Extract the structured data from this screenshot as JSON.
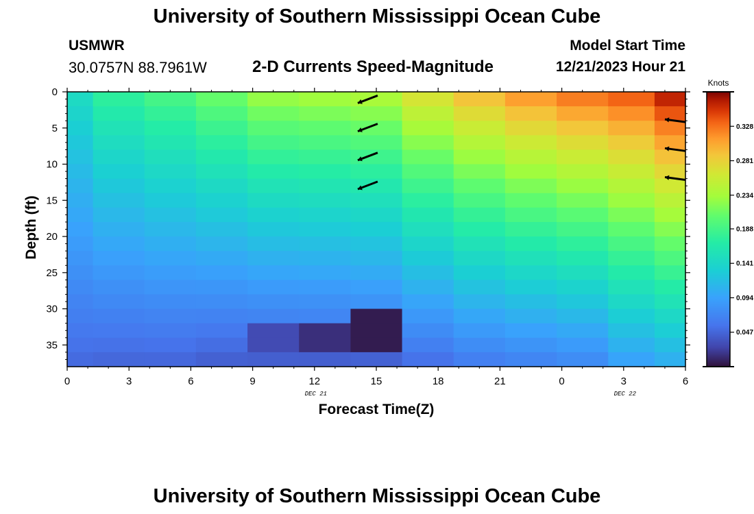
{
  "header": {
    "title": "University of Southern Mississippi Ocean Cube",
    "station": "USMWR",
    "coords": "30.0757N  88.7961W",
    "subtitle": "2-D Currents Speed-Magnitude",
    "model_start_label": "Model Start Time",
    "model_start_value": "12/21/2023 Hour 21"
  },
  "footer": {
    "title": "University of Southern Mississippi Ocean Cube"
  },
  "colorbar": {
    "label": "Knots",
    "ticks": [
      "0.328",
      "0.281",
      "0.234",
      "0.188",
      "0.141",
      "0.094",
      "0.047"
    ],
    "range": [
      0.0,
      0.375
    ]
  },
  "chart_data": {
    "type": "heatmap",
    "xlabel": "Forecast Time(Z)",
    "ylabel": "Depth (ft)",
    "x_tick_labels": [
      "0",
      "3",
      "6",
      "9",
      "12",
      "15",
      "18",
      "21",
      "0",
      "3",
      "6"
    ],
    "x_date_labels": [
      {
        "text": "DEC 21",
        "at_tick": 4
      },
      {
        "text": "DEC 22",
        "at_tick": 9
      }
    ],
    "y_tick_labels": [
      "0",
      "5",
      "10",
      "15",
      "20",
      "25",
      "30",
      "35"
    ],
    "ylim": [
      0,
      38
    ],
    "x_hours": [
      0,
      30
    ],
    "depth_step_ft": 2,
    "columns": [
      {
        "hour": 0,
        "top": 0.15,
        "bottom": 0.048
      },
      {
        "hour": 2.5,
        "top": 0.18,
        "bottom": 0.045
      },
      {
        "hour": 5,
        "top": 0.195,
        "bottom": 0.045
      },
      {
        "hour": 7.5,
        "top": 0.215,
        "bottom": 0.04
      },
      {
        "hour": 10,
        "top": 0.235,
        "bottom": 0.038,
        "dark": {
          "from": 33,
          "to": 36,
          "value": 0.03
        }
      },
      {
        "hour": 12.5,
        "top": 0.24,
        "bottom": 0.038,
        "dark": {
          "from": 32,
          "to": 36,
          "value": 0.015
        }
      },
      {
        "hour": 15,
        "top": 0.245,
        "bottom": 0.04,
        "dark": {
          "from": 31,
          "to": 36,
          "value": 0.005
        }
      },
      {
        "hour": 17.5,
        "top": 0.275,
        "bottom": 0.05
      },
      {
        "hour": 20,
        "top": 0.3,
        "bottom": 0.06
      },
      {
        "hour": 22.5,
        "top": 0.32,
        "bottom": 0.065
      },
      {
        "hour": 25,
        "top": 0.335,
        "bottom": 0.07
      },
      {
        "hour": 27.5,
        "top": 0.345,
        "bottom": 0.09
      },
      {
        "hour": 29.5,
        "top": 0.37,
        "bottom": 0.1
      }
    ],
    "vectors": [
      {
        "hour": 14,
        "depth": 0.8
      },
      {
        "hour": 14,
        "depth": 4.7
      },
      {
        "hour": 14,
        "depth": 8.7
      },
      {
        "hour": 14,
        "depth": 12.7
      },
      {
        "hour": 30,
        "depth": 3.8
      },
      {
        "hour": 30,
        "depth": 7.8
      },
      {
        "hour": 30,
        "depth": 11.8
      }
    ]
  }
}
